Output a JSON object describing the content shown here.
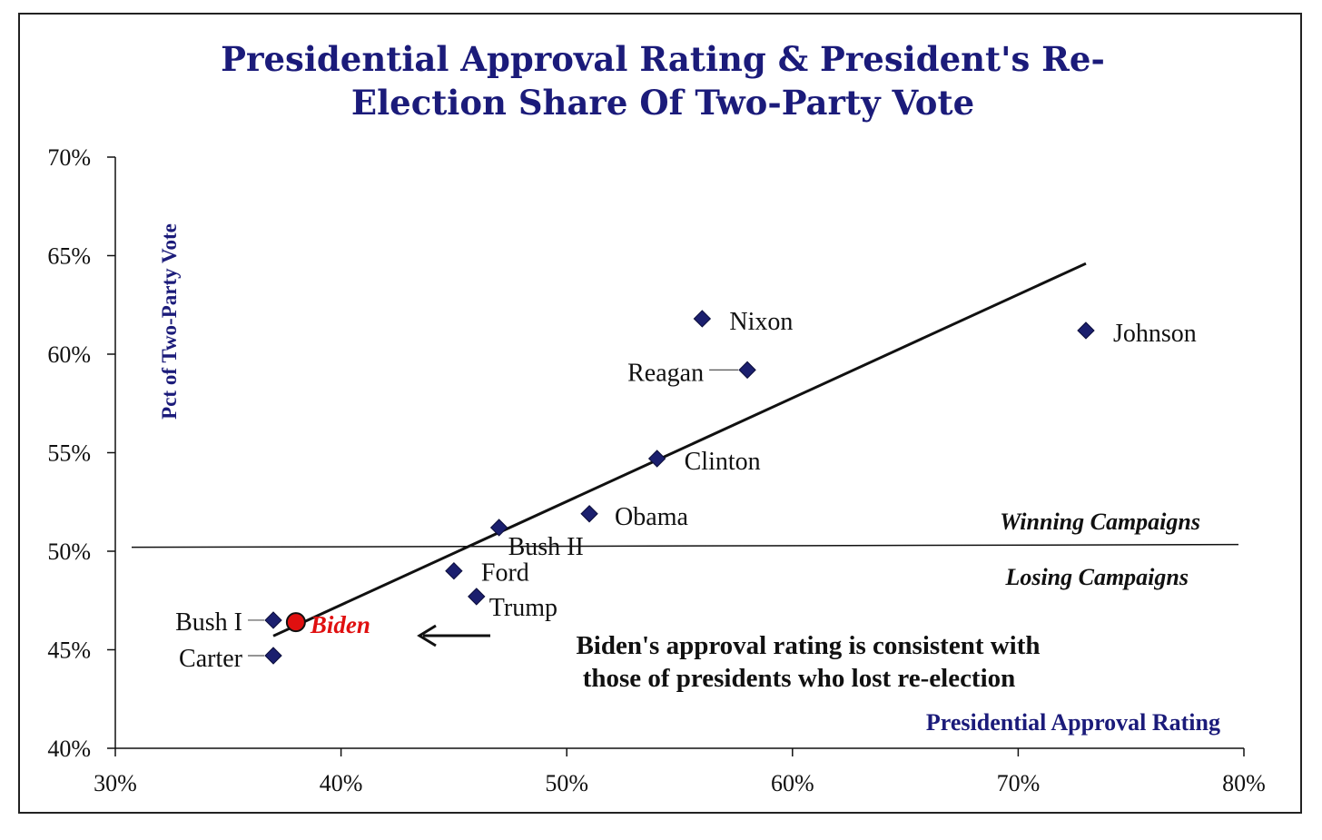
{
  "chart_data": {
    "type": "scatter",
    "title_lines": [
      "Presidential Approval Rating & President's Re-",
      "Election Share Of Two-Party Vote"
    ],
    "xlabel": "Presidential Approval Rating",
    "ylabel": "Pct of Two-Party Vote",
    "xlim": [
      0.3,
      0.8
    ],
    "ylim": [
      0.4,
      0.7
    ],
    "x_ticks": [
      {
        "value": 0.3,
        "label": "30%"
      },
      {
        "value": 0.4,
        "label": "40%"
      },
      {
        "value": 0.5,
        "label": "50%"
      },
      {
        "value": 0.6,
        "label": "60%"
      },
      {
        "value": 0.7,
        "label": "70%"
      },
      {
        "value": 0.8,
        "label": "80%"
      }
    ],
    "y_ticks": [
      {
        "value": 0.4,
        "label": "40%"
      },
      {
        "value": 0.45,
        "label": "45%"
      },
      {
        "value": 0.5,
        "label": "50%"
      },
      {
        "value": 0.55,
        "label": "55%"
      },
      {
        "value": 0.6,
        "label": "60%"
      },
      {
        "value": 0.65,
        "label": "65%"
      },
      {
        "value": 0.7,
        "label": "70%"
      }
    ],
    "points": [
      {
        "name": "Nixon",
        "x": 0.56,
        "y": 0.618
      },
      {
        "name": "Johnson",
        "x": 0.73,
        "y": 0.612
      },
      {
        "name": "Reagan",
        "x": 0.58,
        "y": 0.592
      },
      {
        "name": "Clinton",
        "x": 0.54,
        "y": 0.547
      },
      {
        "name": "Obama",
        "x": 0.51,
        "y": 0.519
      },
      {
        "name": "Bush II",
        "x": 0.47,
        "y": 0.512
      },
      {
        "name": "Ford",
        "x": 0.45,
        "y": 0.49
      },
      {
        "name": "Trump",
        "x": 0.46,
        "y": 0.477
      },
      {
        "name": "Bush I",
        "x": 0.37,
        "y": 0.465
      },
      {
        "name": "Carter",
        "x": 0.37,
        "y": 0.447
      }
    ],
    "highlight": {
      "name": "Biden",
      "x": 0.38,
      "y": 0.464,
      "color": "#e01010"
    },
    "trendline": {
      "x1": 0.37,
      "y1": 0.457,
      "x2": 0.73,
      "y2": 0.646
    },
    "reference_line_y": 0.502,
    "regions": {
      "above": "Winning Campaigns",
      "below": "Losing Campaigns"
    },
    "annotation_lines": [
      "Biden's approval rating is consistent with",
      "those of presidents who lost re-election"
    ],
    "marker_color": "#1b1f6e"
  }
}
